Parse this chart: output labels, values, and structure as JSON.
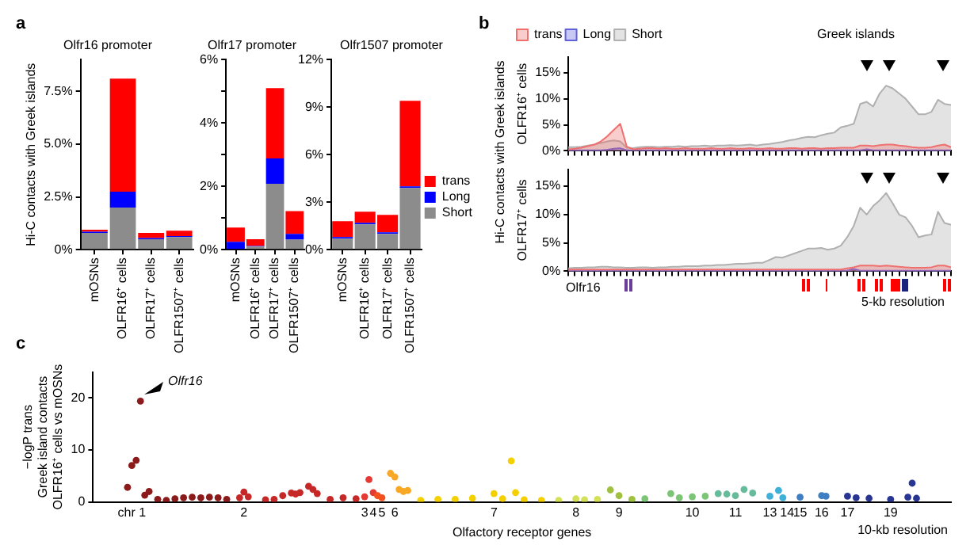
{
  "chart_data": [
    {
      "type": "bar",
      "title": "Olfr16 promoter",
      "ylabel": "Hi-C contacts with Greek islands",
      "categories": [
        "mOSNs",
        "OLFR16⁺ cells",
        "OLFR17⁺ cells",
        "OLFR1507⁺ cells"
      ],
      "stacked": true,
      "ylim": [
        0,
        9
      ],
      "yticks": [
        {
          "value": 0,
          "label": "0%"
        },
        {
          "value": 2.5,
          "label": "2.5%"
        },
        {
          "value": 5,
          "label": "5.0%"
        },
        {
          "value": 7.5,
          "label": "7.5%"
        }
      ],
      "annotations": [
        "a"
      ],
      "series": [
        {
          "color": "#8c8c8c",
          "values": [
            0.8,
            2.0,
            0.5,
            0.6
          ]
        },
        {
          "color": "#0000ff",
          "values": [
            0.05,
            0.75,
            0.05,
            0.05
          ]
        },
        {
          "color": "#ff0000",
          "values": [
            0.1,
            5.35,
            0.25,
            0.25
          ]
        }
      ]
    },
    {
      "type": "bar",
      "title": "Olfr17 promoter",
      "categories": [
        "mOSNs",
        "OLFR16⁺ cells",
        "OLFR17⁺ cells",
        "OLFR1507⁺ cells"
      ],
      "stacked": true,
      "ylim": [
        0,
        6
      ],
      "yticks": [
        {
          "value": 0,
          "label": "0%"
        },
        {
          "value": 1,
          "label": null
        },
        {
          "value": 2,
          "label": "2%"
        },
        {
          "value": 3,
          "label": null
        },
        {
          "value": 4,
          "label": "4%"
        },
        {
          "value": 5,
          "label": null
        },
        {
          "value": 6,
          "label": "6%"
        }
      ],
      "series": [
        {
          "color": "#8c8c8c",
          "values": [
            0,
            0.1,
            2.08,
            0.32
          ]
        },
        {
          "color": "#0000ff",
          "values": [
            0.25,
            0.02,
            0.8,
            0.18
          ]
        },
        {
          "color": "#ff0000",
          "values": [
            0.45,
            0.21,
            2.22,
            0.72
          ]
        }
      ]
    },
    {
      "type": "bar",
      "title": "Olfr1507 promoter",
      "categories": [
        "mOSNs",
        "OLFR16⁺ cells",
        "OLFR17⁺ cells",
        "OLFR1507⁺ cells"
      ],
      "stacked": true,
      "ylim": [
        0,
        12
      ],
      "yticks": [
        {
          "value": 0,
          "label": "0%"
        },
        {
          "value": 3,
          "label": "3%"
        },
        {
          "value": 6,
          "label": "6%"
        },
        {
          "value": 9,
          "label": "9%"
        },
        {
          "value": 12,
          "label": "12%"
        }
      ],
      "legend": "right",
      "series": [
        {
          "name": "Short",
          "color": "#8c8c8c",
          "values": [
            0.7,
            1.6,
            1.0,
            3.9
          ]
        },
        {
          "name": "Long",
          "color": "#0000ff",
          "values": [
            0.1,
            0.1,
            0.1,
            0.1
          ]
        },
        {
          "name": "trans",
          "color": "#ff0000",
          "values": [
            1.0,
            0.7,
            1.1,
            5.4
          ]
        }
      ]
    },
    {
      "type": "area",
      "ylabel": "OLFR16⁺ cells",
      "categories": [
        null,
        null,
        null,
        null,
        null,
        null,
        null,
        null,
        null,
        null,
        null,
        null,
        null,
        null,
        null,
        null,
        null,
        null,
        null,
        null,
        null,
        null,
        null,
        null,
        null,
        null,
        null,
        null,
        null,
        null,
        null,
        null,
        null,
        null,
        null,
        null,
        null,
        null,
        null,
        null,
        null,
        null,
        null,
        null,
        null,
        null,
        null,
        null,
        null,
        null,
        null,
        null,
        null,
        null,
        null,
        null,
        null,
        null,
        null,
        null
      ],
      "ylim": [
        0,
        18
      ],
      "yticks": [
        {
          "value": 0,
          "label": "0%"
        },
        {
          "value": 5,
          "label": "5%"
        },
        {
          "value": 10,
          "label": "10%"
        },
        {
          "value": 15,
          "label": "15%"
        }
      ],
      "tick_labels": "y",
      "legend": "top left",
      "annotations": [
        "b",
        "Greek islands",
        "Hi-C contacts with Greek islands"
      ],
      "series": [
        {
          "name": "trans",
          "color": "#f07070",
          "values": [
            0.3,
            0.4,
            0.6,
            0.9,
            1.2,
            1.8,
            2.8,
            4.0,
            5.2,
            0.8,
            0.3,
            0.4,
            0.5,
            0.5,
            0.4,
            0.5,
            0.4,
            0.4,
            0.5,
            0.4,
            0.4,
            0.4,
            0.5,
            0.4,
            0.4,
            0.5,
            0.4,
            0.4,
            0.5,
            0.4,
            0.4,
            0.5,
            0.4,
            0.4,
            0.5,
            0.5,
            0.4,
            0.5,
            0.5,
            0.4,
            0.5,
            0.5,
            0.6,
            0.6,
            0.6,
            1.0,
            1.0,
            0.9,
            1.1,
            1.2,
            1.2,
            1.0,
            0.9,
            0.7,
            0.6,
            0.6,
            0.7,
            1.0,
            1.2,
            0.7
          ]
        },
        {
          "name": "Long",
          "color": "#6060e0",
          "values": [
            0.1,
            0.1,
            0.1,
            0.1,
            0.1,
            0.1,
            0.2,
            0.4,
            0.5,
            0.1,
            0.1,
            0.1,
            0.1,
            0.1,
            0.1,
            0.1,
            0.1,
            0.1,
            0.1,
            0.1,
            0.1,
            0.1,
            0.1,
            0.1,
            0.1,
            0.1,
            0.1,
            0.1,
            0.1,
            0.1,
            0.1,
            0.1,
            0.1,
            0.1,
            0.1,
            0.1,
            0.1,
            0.1,
            0.1,
            0.1,
            0.1,
            0.1,
            0.1,
            0.1,
            0.1,
            0.1,
            0.3,
            0.1,
            0.1,
            0.1,
            0.1,
            0.1,
            0.1,
            0.1,
            0.1,
            0.1,
            0.1,
            0.1,
            0.1,
            0.1
          ]
        },
        {
          "name": "Short",
          "color": "#b0b0b0",
          "values": [
            0.7,
            0.7,
            0.8,
            1.0,
            1.2,
            1.5,
            1.8,
            2.0,
            1.8,
            0.6,
            0.5,
            0.7,
            0.8,
            0.8,
            0.7,
            0.8,
            0.8,
            0.9,
            0.8,
            0.9,
            0.9,
            1.0,
            0.9,
            1.0,
            1.0,
            1.1,
            1.0,
            1.1,
            1.2,
            1.0,
            1.2,
            1.3,
            1.5,
            1.7,
            2.0,
            2.2,
            2.5,
            2.7,
            2.6,
            3.0,
            3.3,
            3.5,
            4.5,
            4.8,
            5.2,
            9.0,
            9.4,
            8.5,
            11.0,
            12.5,
            12.0,
            11.0,
            10.0,
            8.5,
            7.0,
            7.0,
            7.5,
            9.8,
            9.0,
            8.8
          ]
        }
      ]
    },
    {
      "type": "area",
      "ylabel": "OLFR17⁺ cells",
      "categories": [
        null,
        null,
        null,
        null,
        null,
        null,
        null,
        null,
        null,
        null,
        null,
        null,
        null,
        null,
        null,
        null,
        null,
        null,
        null,
        null,
        null,
        null,
        null,
        null,
        null,
        null,
        null,
        null,
        null,
        null,
        null,
        null,
        null,
        null,
        null,
        null,
        null,
        null,
        null,
        null,
        null,
        null,
        null,
        null,
        null,
        null,
        null,
        null,
        null,
        null,
        null,
        null,
        null,
        null,
        null,
        null,
        null,
        null,
        null,
        null
      ],
      "ylim": [
        0,
        18
      ],
      "yticks": [
        {
          "value": 0,
          "label": "0%"
        },
        {
          "value": 5,
          "label": "5%"
        },
        {
          "value": 10,
          "label": "10%"
        },
        {
          "value": 15,
          "label": "15%"
        }
      ],
      "tick_labels": "y",
      "annotations": [
        "Olfr16",
        "5-kb resolution"
      ],
      "series": [
        {
          "color": "#f07070",
          "values": [
            0.3,
            0.3,
            0.3,
            0.3,
            0.3,
            0.3,
            0.3,
            0.3,
            0.3,
            0.3,
            0.3,
            0.3,
            0.3,
            0.3,
            0.3,
            0.3,
            0.3,
            0.3,
            0.3,
            0.3,
            0.3,
            0.3,
            0.3,
            0.3,
            0.3,
            0.3,
            0.3,
            0.3,
            0.3,
            0.3,
            0.3,
            0.3,
            0.3,
            0.3,
            0.3,
            0.3,
            0.3,
            0.3,
            0.3,
            0.3,
            0.3,
            0.3,
            0.3,
            0.5,
            0.7,
            1.0,
            1.0,
            1.0,
            0.9,
            1.0,
            0.9,
            0.8,
            0.7,
            0.6,
            0.6,
            0.6,
            0.7,
            1.0,
            1.0,
            0.7
          ]
        },
        {
          "color": "#6060e0",
          "values": [
            0.1,
            0.1,
            0.1,
            0.1,
            0.1,
            0.1,
            0.1,
            0.1,
            0.1,
            0.1,
            0.1,
            0.1,
            0.1,
            0.1,
            0.1,
            0.1,
            0.1,
            0.1,
            0.1,
            0.1,
            0.1,
            0.1,
            0.1,
            0.1,
            0.1,
            0.1,
            0.1,
            0.1,
            0.1,
            0.1,
            0.1,
            0.1,
            0.1,
            0.1,
            0.1,
            0.1,
            0.1,
            0.1,
            0.1,
            0.1,
            0.1,
            0.1,
            0.1,
            0.1,
            0.4,
            0.1,
            0.1,
            0.1,
            0.1,
            0.1,
            0.1,
            0.1,
            0.1,
            0.1,
            0.1,
            0.1,
            0.1,
            0.1,
            0.1,
            0.1
          ]
        },
        {
          "color": "#b0b0b0",
          "values": [
            0.5,
            0.6,
            0.6,
            0.7,
            0.7,
            0.8,
            0.8,
            0.7,
            0.7,
            0.6,
            0.6,
            0.7,
            0.7,
            0.6,
            0.7,
            0.7,
            0.8,
            0.8,
            0.9,
            0.9,
            0.9,
            1.0,
            1.0,
            1.1,
            1.1,
            1.2,
            1.3,
            1.3,
            1.4,
            1.5,
            1.5,
            2.0,
            2.5,
            2.4,
            2.8,
            3.2,
            3.6,
            4.0,
            4.0,
            4.1,
            3.8,
            4.0,
            4.5,
            6.0,
            8.0,
            11.2,
            10.0,
            11.5,
            12.5,
            13.8,
            12.0,
            10.0,
            9.5,
            8.0,
            6.0,
            6.3,
            6.5,
            10.5,
            8.5,
            8.2
          ]
        }
      ]
    },
    {
      "type": "scatter",
      "ylabel": "−logP trans\nGreek island contacts\nOLFR16⁺ cells vs mOSNs",
      "xlabel": "Olfactory receptor genes",
      "marker": "circle",
      "ylim": [
        0,
        25
      ],
      "yticks": [
        0,
        10,
        20
      ],
      "annotations": [
        "c",
        "Olfr16",
        "10-kb resolution"
      ],
      "categories": [
        null,
        null,
        null,
        null,
        null,
        null,
        null,
        null,
        null,
        "chr 1",
        null,
        null,
        null,
        null,
        null,
        null,
        null,
        null,
        null,
        null,
        null,
        null,
        null,
        null,
        null,
        null,
        null,
        null,
        null,
        null,
        null,
        null,
        null,
        null,
        null,
        "2",
        null,
        null,
        null,
        null,
        null,
        null,
        null,
        null,
        null,
        null,
        null,
        null,
        null,
        null,
        null,
        null,
        null,
        null,
        null,
        null,
        null,
        null,
        null,
        null,
        null,
        null,
        null,
        "3",
        null,
        "4",
        null,
        "5",
        null,
        null,
        "6",
        null,
        null,
        null,
        null,
        null,
        null,
        null,
        null,
        null,
        null,
        null,
        null,
        null,
        null,
        null,
        null,
        null,
        null,
        null,
        null,
        null,
        null,
        "7",
        null,
        null,
        null,
        null,
        null,
        null,
        null,
        null,
        null,
        null,
        null,
        null,
        null,
        null,
        null,
        null,
        null,
        null,
        "8",
        null,
        null,
        null,
        null,
        null,
        null,
        null,
        null,
        null,
        "9",
        null,
        null,
        null,
        null,
        null,
        null,
        null,
        null,
        null,
        null,
        null,
        null,
        null,
        null,
        null,
        null,
        "10",
        null,
        null,
        null,
        null,
        null,
        null,
        null,
        null,
        null,
        "11",
        null,
        null,
        null,
        null,
        null,
        null,
        null,
        "13",
        null,
        null,
        null,
        "14",
        null,
        null,
        "15",
        null,
        null,
        null,
        null,
        "16",
        null,
        null,
        null,
        null,
        null,
        "17",
        null,
        null,
        null,
        null,
        null,
        null,
        null,
        null,
        null,
        "19",
        null,
        null,
        null,
        null,
        null,
        null,
        null,
        null,
        null,
        null,
        null,
        null,
        null,
        null
      ],
      "series": [
        {
          "values": [
            null,
            null,
            null,
            null,
            null,
            null,
            null,
            null,
            2.8,
            7.0,
            8.0,
            19.4,
            1.3,
            2.0,
            null,
            0.5,
            null,
            0.3,
            null,
            0.6,
            null,
            0.8,
            null,
            0.9,
            null,
            0.8,
            null,
            0.9,
            null,
            0.8,
            null,
            0.5,
            null,
            null,
            0.8,
            1.9,
            1.0,
            null,
            null,
            null,
            0.4,
            null,
            0.5,
            null,
            1.2,
            null,
            1.7,
            1.5,
            1.8,
            null,
            3.0,
            2.4,
            1.6,
            null,
            null,
            0.5,
            null,
            null,
            0.8,
            null,
            null,
            0.6,
            null,
            1.0,
            4.3,
            1.8,
            1.2,
            0.8,
            null,
            5.5,
            4.8,
            2.4,
            2.0,
            2.2,
            null,
            null,
            0.3,
            null,
            null,
            null,
            0.5,
            null,
            null,
            null,
            0.5,
            null,
            null,
            null,
            0.7,
            null,
            null,
            null,
            null,
            1.6,
            null,
            0.6,
            null,
            7.9,
            1.8,
            null,
            0.4,
            null,
            null,
            null,
            0.3,
            null,
            null,
            null,
            0.3,
            null,
            null,
            null,
            0.6,
            null,
            0.4,
            null,
            null,
            0.5,
            null,
            null,
            2.3,
            null,
            1.2,
            null,
            null,
            0.5,
            null,
            null,
            0.6,
            null,
            null,
            null,
            null,
            null,
            1.6,
            null,
            0.8,
            null,
            null,
            1.0,
            null,
            null,
            1.1,
            null,
            null,
            1.6,
            null,
            1.5,
            null,
            1.2,
            null,
            2.4,
            null,
            1.7,
            null,
            null,
            null,
            1.1,
            null,
            2.2,
            0.8,
            null,
            null,
            null,
            0.9,
            null,
            null,
            null,
            null,
            1.2,
            1.1,
            null,
            null,
            null,
            null,
            1.1,
            null,
            0.8,
            null,
            null,
            0.7,
            null,
            null,
            null,
            null,
            0.5,
            null,
            null,
            null,
            0.9,
            3.6,
            0.7,
            null,
            null,
            null,
            null,
            null,
            null,
            null,
            null
          ],
          "colors": [
            null,
            null,
            null,
            null,
            null,
            null,
            null,
            null,
            "#8b1a1a",
            "#8b1a1a",
            "#8b1a1a",
            "#8b1a1a",
            "#8b1a1a",
            "#8b1a1a",
            null,
            "#8b1a1a",
            null,
            "#8b1a1a",
            null,
            "#8b1a1a",
            null,
            "#8b1a1a",
            null,
            "#8b1a1a",
            null,
            "#8b1a1a",
            null,
            "#8b1a1a",
            null,
            "#8b1a1a",
            null,
            "#8b1a1a",
            null,
            null,
            "#c62828",
            "#c62828",
            "#c62828",
            null,
            null,
            null,
            "#c62828",
            null,
            "#c62828",
            null,
            "#c62828",
            null,
            "#c62828",
            "#c62828",
            "#c62828",
            null,
            "#c62828",
            "#c62828",
            "#c62828",
            null,
            null,
            "#c62828",
            null,
            null,
            "#c62828",
            null,
            null,
            "#c62828",
            null,
            "#e53935",
            "#e53935",
            "#e53935",
            "#f4511e",
            "#f4511e",
            null,
            "#f9a825",
            "#f9a825",
            "#f9a825",
            "#f9a825",
            "#f9a825",
            null,
            null,
            "#f5d000",
            null,
            null,
            null,
            "#f5d000",
            null,
            null,
            null,
            "#f5d000",
            null,
            null,
            null,
            "#f5d000",
            null,
            null,
            null,
            null,
            "#f5d000",
            null,
            "#f5d000",
            null,
            "#f5d000",
            "#f5d000",
            null,
            "#f5d000",
            null,
            null,
            null,
            "#f5d000",
            null,
            null,
            null,
            "#d4e157",
            null,
            null,
            null,
            "#d4e157",
            null,
            "#d4e157",
            null,
            null,
            "#d4e157",
            null,
            null,
            "#a0c040",
            null,
            "#a0c040",
            null,
            null,
            "#a0c040",
            null,
            null,
            "#7cc576",
            null,
            null,
            null,
            null,
            null,
            "#7cc576",
            null,
            "#7cc576",
            null,
            null,
            "#7cc576",
            null,
            null,
            "#7cc576",
            null,
            null,
            "#66bb9a",
            null,
            "#66bb9a",
            null,
            "#66bb9a",
            null,
            "#66bb9a",
            null,
            "#66bb9a",
            null,
            null,
            null,
            "#3fb1d8",
            null,
            "#3fb1d8",
            "#3fb1d8",
            null,
            null,
            null,
            "#3d7fc2",
            null,
            null,
            null,
            null,
            "#3d7fc2",
            "#3d7fc2",
            null,
            null,
            null,
            null,
            "#283593",
            null,
            "#283593",
            null,
            null,
            "#283593",
            null,
            null,
            null,
            null,
            "#283593",
            null,
            null,
            null,
            "#283593",
            "#283593",
            "#283593",
            null,
            null,
            null,
            null,
            null,
            null,
            null,
            null
          ]
        }
      ]
    }
  ]
}
